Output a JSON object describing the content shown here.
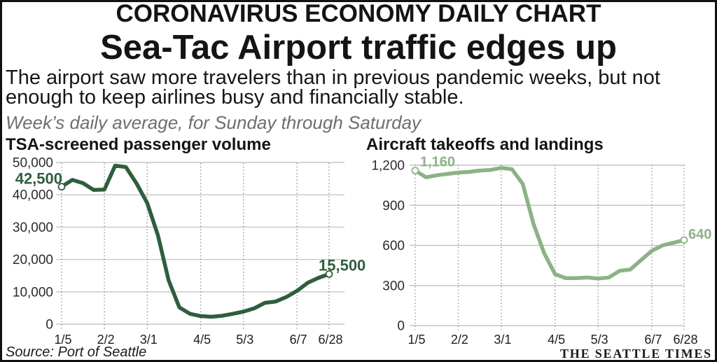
{
  "header": {
    "kicker": "CORONAVIRUS ECONOMY DAILY CHART",
    "headline": "Sea-Tac Airport traffic edges up",
    "description": "The airport saw more travelers than in previous pandemic weeks, but not enough to keep airlines busy and financially stable.",
    "note": "Week’s daily average, for Sunday through Saturday"
  },
  "footer": {
    "source": "Source: Port of Seattle",
    "credit": "THE SEATTLE TIMES"
  },
  "chart_data": [
    {
      "type": "line",
      "title": "TSA-screened passenger volume",
      "xlim": [
        0,
        25
      ],
      "ylim": [
        0,
        50000
      ],
      "grid": true,
      "x": [
        0,
        1,
        2,
        3,
        4,
        5,
        6,
        7,
        8,
        9,
        10,
        11,
        12,
        13,
        14,
        15,
        16,
        17,
        18,
        19,
        20,
        21,
        22,
        23,
        24,
        25
      ],
      "xticks": [
        {
          "x": 0,
          "label": "1/5"
        },
        {
          "x": 4,
          "label": "2/2"
        },
        {
          "x": 8,
          "label": "3/1"
        },
        {
          "x": 13,
          "label": "4/5"
        },
        {
          "x": 17,
          "label": "5/3"
        },
        {
          "x": 22,
          "label": "6/7"
        },
        {
          "x": 25,
          "label": "6/28"
        }
      ],
      "yticks": [
        {
          "y": 0,
          "label": "0"
        },
        {
          "y": 10000,
          "label": "10,000"
        },
        {
          "y": 20000,
          "label": "20,000"
        },
        {
          "y": 30000,
          "label": "30,000"
        },
        {
          "y": 40000,
          "label": "40,000"
        },
        {
          "y": 50000,
          "label": "50,000"
        }
      ],
      "series": [
        {
          "color": "#2f5e3c",
          "values": [
            42500,
            44600,
            43600,
            41500,
            41600,
            49000,
            48600,
            43500,
            37500,
            27500,
            13600,
            5200,
            3200,
            2500,
            2300,
            2600,
            3200,
            3900,
            4900,
            6600,
            7000,
            8400,
            10300,
            12800,
            14300,
            15500
          ]
        }
      ],
      "annotations": [
        {
          "x": 0,
          "y": 42500,
          "label": "42,500"
        },
        {
          "x": 25,
          "y": 15500,
          "label": "15,500"
        }
      ]
    },
    {
      "type": "line",
      "title": "Aircraft takeoffs and landings",
      "xlim": [
        0,
        25
      ],
      "ylim": [
        0,
        1200
      ],
      "grid": true,
      "x": [
        0,
        1,
        2,
        3,
        4,
        5,
        6,
        7,
        8,
        9,
        10,
        11,
        12,
        13,
        14,
        15,
        16,
        17,
        18,
        19,
        20,
        21,
        22,
        23,
        24,
        25
      ],
      "xticks": [
        {
          "x": 0,
          "label": "1/5"
        },
        {
          "x": 4,
          "label": "2/2"
        },
        {
          "x": 8,
          "label": "3/1"
        },
        {
          "x": 13,
          "label": "4/5"
        },
        {
          "x": 17,
          "label": "5/3"
        },
        {
          "x": 22,
          "label": "6/7"
        },
        {
          "x": 25,
          "label": "6/28"
        }
      ],
      "yticks": [
        {
          "y": 0,
          "label": "0"
        },
        {
          "y": 300,
          "label": "300"
        },
        {
          "y": 600,
          "label": "600"
        },
        {
          "y": 900,
          "label": "900"
        },
        {
          "y": 1200,
          "label": "1,200"
        }
      ],
      "series": [
        {
          "color": "#8cb285",
          "values": [
            1160,
            1110,
            1125,
            1135,
            1145,
            1150,
            1160,
            1165,
            1180,
            1170,
            1060,
            760,
            540,
            385,
            355,
            355,
            360,
            352,
            360,
            410,
            420,
            490,
            560,
            600,
            620,
            640
          ]
        }
      ],
      "annotations": [
        {
          "x": 0,
          "y": 1160,
          "label": "1,160"
        },
        {
          "x": 25,
          "y": 640,
          "label": "640"
        }
      ]
    }
  ]
}
